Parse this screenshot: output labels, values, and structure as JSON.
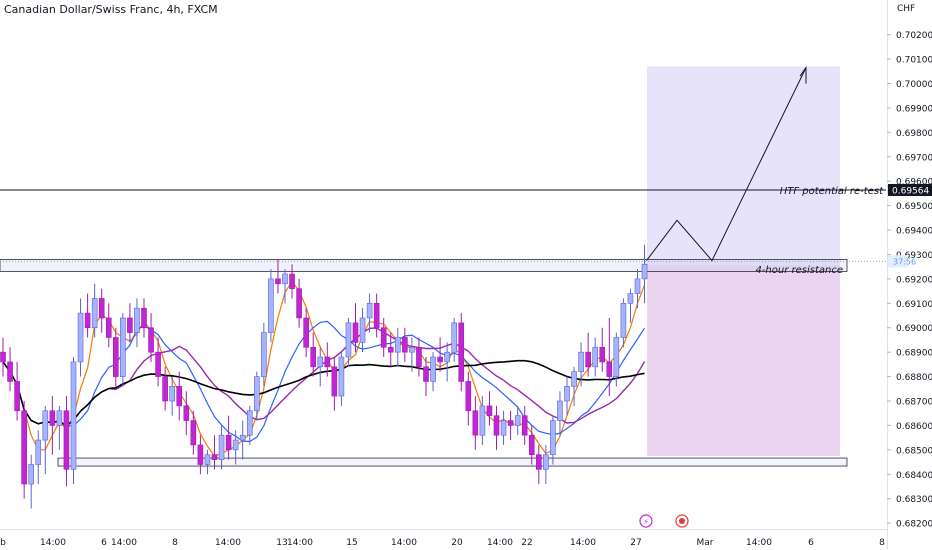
{
  "header": {
    "title": "Canadian Dollar/Swiss Franc, 4h, FXCM",
    "currency": "CHF"
  },
  "price_axis": {
    "ticks": [
      "0.70200",
      "0.70100",
      "0.70000",
      "0.69900",
      "0.69800",
      "0.69700",
      "0.69600",
      "0.69500",
      "0.69400",
      "0.69300",
      "0.69200",
      "0.69100",
      "0.69000",
      "0.68900",
      "0.68800",
      "0.68700",
      "0.68600",
      "0.68500",
      "0.68400",
      "0.68300",
      "0.68200"
    ],
    "highlight_label": "0.69564",
    "highlight_color": "#131722",
    "countdown_label": "37:56",
    "countdown_color": "#5b9cf6"
  },
  "time_axis": {
    "ticks": [
      "b",
      "14:00",
      "6",
      "14:00",
      "8",
      "14:00",
      "13",
      "14:00",
      "15",
      "14:00",
      "20",
      "14:00",
      "22",
      "14:00",
      "27",
      "Mar",
      "14:00",
      "6",
      "8"
    ]
  },
  "annotations": {
    "htf_label": "HTF potential re-test",
    "resistance_label": "4-hour resistance"
  },
  "colors": {
    "bull": "#a5b4fc",
    "bull_border": "#5a63d8",
    "bear": "#c026d3",
    "bear_border": "#a21caf",
    "ma_fast": "#f57c00",
    "ma_mid": "#9c27b0",
    "ma_slow": "#000000",
    "ma_blue": "#2962ff",
    "target_zone": "#e7e3fb",
    "stop_zone": "#ead4f0"
  },
  "chart_data": {
    "type": "candlestick",
    "symbol": "CADCHF",
    "timeframe": "4h",
    "y_range": [
      0.6818,
      0.7025
    ],
    "horizontal_line": 0.69564,
    "resistance_zone": [
      0.69225,
      0.69255
    ],
    "support_zone": [
      0.68415,
      0.6845
    ],
    "target_zone": [
      0.69255,
      0.7007
    ],
    "stop_zone": [
      0.68475,
      0.69255
    ],
    "projection": [
      [
        0.69255,
        0.6931
      ],
      [
        0.6944,
        0.6928
      ],
      [
        0.7006
      ]
    ],
    "candles": [
      [
        0.689,
        0.6896,
        0.688,
        0.6886
      ],
      [
        0.6886,
        0.6892,
        0.6874,
        0.6878
      ],
      [
        0.6878,
        0.6886,
        0.6862,
        0.6866
      ],
      [
        0.6866,
        0.687,
        0.683,
        0.6836
      ],
      [
        0.6836,
        0.6848,
        0.6826,
        0.6844
      ],
      [
        0.6844,
        0.6858,
        0.6836,
        0.6854
      ],
      [
        0.6854,
        0.6868,
        0.684,
        0.6866
      ],
      [
        0.6866,
        0.6872,
        0.6848,
        0.686
      ],
      [
        0.686,
        0.6868,
        0.685,
        0.6866
      ],
      [
        0.6866,
        0.6872,
        0.6835,
        0.6842
      ],
      [
        0.6842,
        0.6888,
        0.6836,
        0.6886
      ],
      [
        0.6886,
        0.6912,
        0.688,
        0.6906
      ],
      [
        0.6906,
        0.6914,
        0.6896,
        0.69
      ],
      [
        0.69,
        0.6918,
        0.6896,
        0.6912
      ],
      [
        0.6912,
        0.6916,
        0.6898,
        0.6904
      ],
      [
        0.6904,
        0.691,
        0.6892,
        0.6896
      ],
      [
        0.6896,
        0.69,
        0.6876,
        0.688
      ],
      [
        0.688,
        0.6906,
        0.6876,
        0.6904
      ],
      [
        0.6904,
        0.691,
        0.6894,
        0.6898
      ],
      [
        0.6898,
        0.6912,
        0.6892,
        0.6908
      ],
      [
        0.6908,
        0.6912,
        0.6896,
        0.69
      ],
      [
        0.69,
        0.6906,
        0.6886,
        0.689
      ],
      [
        0.689,
        0.6896,
        0.6876,
        0.688
      ],
      [
        0.688,
        0.6884,
        0.6866,
        0.687
      ],
      [
        0.687,
        0.688,
        0.6864,
        0.6876
      ],
      [
        0.6876,
        0.6882,
        0.6862,
        0.6868
      ],
      [
        0.6868,
        0.6874,
        0.6856,
        0.6862
      ],
      [
        0.6862,
        0.6866,
        0.6848,
        0.6852
      ],
      [
        0.6852,
        0.6856,
        0.684,
        0.6844
      ],
      [
        0.6844,
        0.685,
        0.684,
        0.6848
      ],
      [
        0.6848,
        0.6856,
        0.6842,
        0.6846
      ],
      [
        0.6846,
        0.686,
        0.6842,
        0.6856
      ],
      [
        0.6856,
        0.6864,
        0.6846,
        0.685
      ],
      [
        0.685,
        0.6858,
        0.6844,
        0.6854
      ],
      [
        0.6854,
        0.6862,
        0.6846,
        0.6856
      ],
      [
        0.6856,
        0.6868,
        0.6852,
        0.6866
      ],
      [
        0.6866,
        0.6882,
        0.6862,
        0.688
      ],
      [
        0.688,
        0.6902,
        0.6876,
        0.6898
      ],
      [
        0.6898,
        0.6924,
        0.6894,
        0.692
      ],
      [
        0.692,
        0.6928,
        0.6914,
        0.6918
      ],
      [
        0.6918,
        0.6924,
        0.691,
        0.6922
      ],
      [
        0.6922,
        0.6926,
        0.6912,
        0.6916
      ],
      [
        0.6916,
        0.692,
        0.69,
        0.6904
      ],
      [
        0.6904,
        0.6908,
        0.6888,
        0.6892
      ],
      [
        0.6892,
        0.6898,
        0.688,
        0.6884
      ],
      [
        0.6884,
        0.6892,
        0.6876,
        0.6888
      ],
      [
        0.6888,
        0.6894,
        0.688,
        0.6884
      ],
      [
        0.6884,
        0.6888,
        0.6866,
        0.6872
      ],
      [
        0.6872,
        0.689,
        0.6868,
        0.6888
      ],
      [
        0.6888,
        0.6904,
        0.6884,
        0.6902
      ],
      [
        0.6902,
        0.691,
        0.689,
        0.6894
      ],
      [
        0.6894,
        0.6908,
        0.689,
        0.6904
      ],
      [
        0.6904,
        0.6914,
        0.6898,
        0.691
      ],
      [
        0.691,
        0.6914,
        0.6896,
        0.69
      ],
      [
        0.69,
        0.6904,
        0.6888,
        0.6892
      ],
      [
        0.6892,
        0.6898,
        0.6884,
        0.689
      ],
      [
        0.689,
        0.69,
        0.6884,
        0.6896
      ],
      [
        0.6896,
        0.69,
        0.6886,
        0.689
      ],
      [
        0.689,
        0.6896,
        0.6882,
        0.6892
      ],
      [
        0.6892,
        0.6896,
        0.688,
        0.6884
      ],
      [
        0.6884,
        0.6888,
        0.6872,
        0.6878
      ],
      [
        0.6878,
        0.689,
        0.6874,
        0.6888
      ],
      [
        0.6888,
        0.6896,
        0.6882,
        0.6886
      ],
      [
        0.6886,
        0.6894,
        0.6878,
        0.689
      ],
      [
        0.689,
        0.6904,
        0.6886,
        0.6902
      ],
      [
        0.6902,
        0.6906,
        0.6874,
        0.6878
      ],
      [
        0.6878,
        0.6882,
        0.686,
        0.6866
      ],
      [
        0.6866,
        0.6872,
        0.685,
        0.6856
      ],
      [
        0.6856,
        0.6872,
        0.6852,
        0.6868
      ],
      [
        0.6868,
        0.6874,
        0.686,
        0.6864
      ],
      [
        0.6864,
        0.6868,
        0.685,
        0.6856
      ],
      [
        0.6856,
        0.6866,
        0.6852,
        0.6862
      ],
      [
        0.6862,
        0.6866,
        0.6854,
        0.686
      ],
      [
        0.686,
        0.6868,
        0.6856,
        0.6864
      ],
      [
        0.6864,
        0.6868,
        0.6852,
        0.6856
      ],
      [
        0.6856,
        0.686,
        0.6844,
        0.6848
      ],
      [
        0.6848,
        0.6852,
        0.6836,
        0.6842
      ],
      [
        0.6842,
        0.6852,
        0.6836,
        0.6848
      ],
      [
        0.6848,
        0.6864,
        0.6844,
        0.6862
      ],
      [
        0.6862,
        0.6874,
        0.6856,
        0.687
      ],
      [
        0.687,
        0.688,
        0.6864,
        0.6876
      ],
      [
        0.6876,
        0.6884,
        0.6868,
        0.6882
      ],
      [
        0.6882,
        0.6894,
        0.6876,
        0.689
      ],
      [
        0.689,
        0.6898,
        0.688,
        0.6884
      ],
      [
        0.6884,
        0.6896,
        0.688,
        0.6892
      ],
      [
        0.6892,
        0.69,
        0.6882,
        0.6886
      ],
      [
        0.6886,
        0.6904,
        0.6872,
        0.688
      ],
      [
        0.688,
        0.6898,
        0.6876,
        0.6896
      ],
      [
        0.6896,
        0.6912,
        0.6892,
        0.691
      ],
      [
        0.691,
        0.6916,
        0.6902,
        0.6914
      ],
      [
        0.6914,
        0.6924,
        0.6908,
        0.692
      ],
      [
        0.692,
        0.6934,
        0.691,
        0.6926
      ]
    ]
  }
}
